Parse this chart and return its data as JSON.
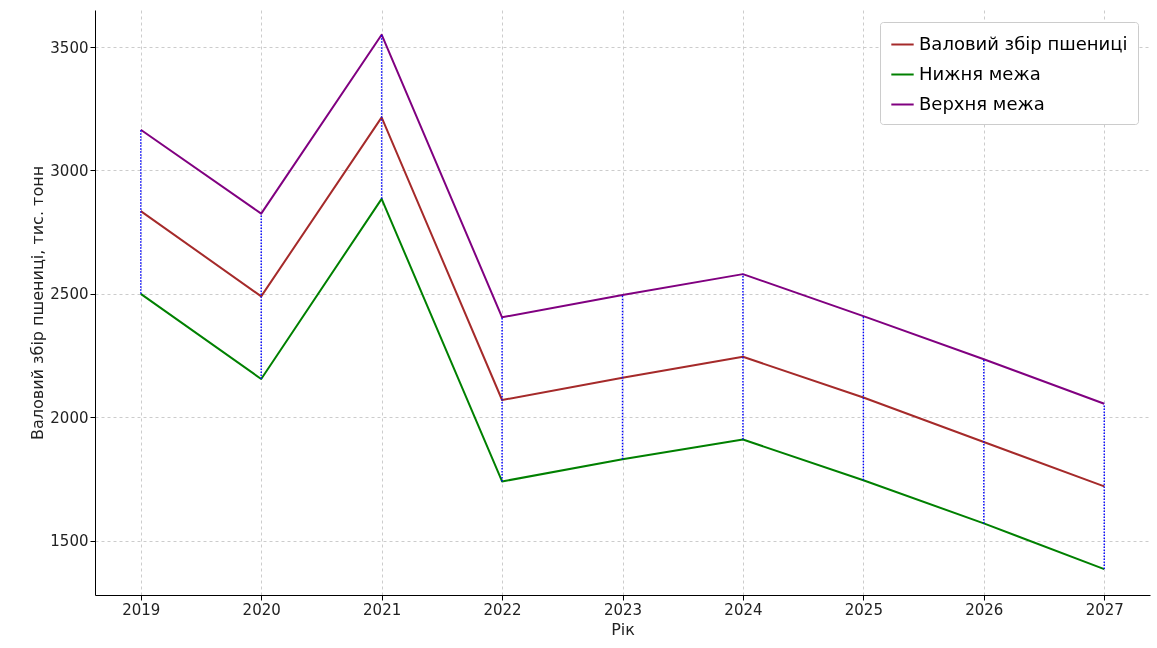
{
  "chart_data": {
    "type": "line",
    "xlabel": "Рік",
    "ylabel": "Валовий збір пшениці, тис. тонн",
    "categories": [
      "2019",
      "2020",
      "2021",
      "2022",
      "2023",
      "2024",
      "2025",
      "2026",
      "2027"
    ],
    "series": [
      {
        "name": "Валовий збір пшениці",
        "color": "#a52a2a",
        "values": [
          2835,
          2490,
          3215,
          2070,
          2160,
          2245,
          2080,
          1900,
          1720
        ],
        "errors": [
          [
            2500,
            3165
          ],
          [
            2155,
            2825
          ],
          [
            2885,
            3550
          ],
          [
            1740,
            2405
          ],
          [
            1830,
            2495
          ],
          [
            1910,
            2580
          ],
          [
            1745,
            2410
          ],
          [
            1570,
            2235
          ],
          [
            1385,
            2055
          ]
        ]
      },
      {
        "name": "Нижня межа",
        "color": "#008000",
        "values": [
          2500,
          2155,
          2885,
          1740,
          1830,
          1910,
          1745,
          1570,
          1385
        ]
      },
      {
        "name": "Верхня межа",
        "color": "#800080",
        "values": [
          3165,
          2825,
          3550,
          2405,
          2495,
          2580,
          2410,
          2235,
          2055
        ]
      }
    ],
    "ylim": [
      1280,
      3650
    ],
    "yticks": [
      1500,
      2000,
      2500,
      3000,
      3500
    ],
    "grid": true,
    "legend": "top right",
    "marker": "none",
    "line_style": "solid"
  }
}
